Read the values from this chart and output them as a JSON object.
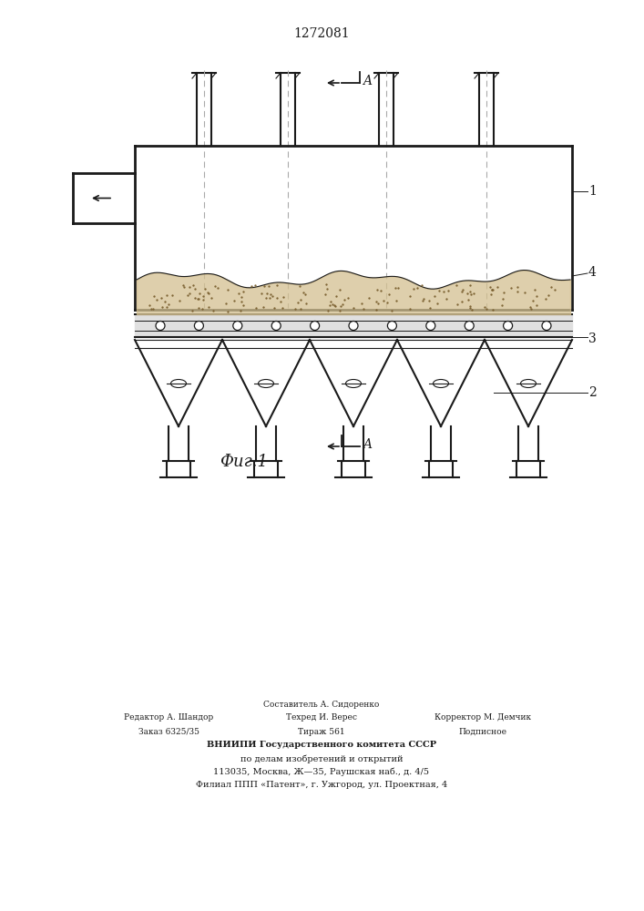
{
  "patent_number": "1272081",
  "fig_label": "Фиг.1",
  "section_label_A": "A",
  "label_1": "1",
  "label_2": "2",
  "label_3": "3",
  "label_4": "4",
  "bg_color": "#ffffff",
  "line_color": "#1a1a1a",
  "dash_color": "#aaaaaa",
  "fill_dust": "#d4c090",
  "footer_line1": "Составитель А. Сидоренко",
  "footer_line2_left": "Редактор А. Шандор",
  "footer_line2_mid": "Техред И. Верес",
  "footer_line2_right": "Корректор М. Демчик",
  "footer_line3_left": "Заказ 6325/35",
  "footer_line3_mid": "Тираж 561",
  "footer_line3_right": "Подписное",
  "footer_line4": "ВНИИПИ Государственного комитета СССР",
  "footer_line5": "по делам изобретений и открытий",
  "footer_line6": "113035, Москва, Ж—35, Раушская наб., д. 4/5",
  "footer_line7": "Филиал ППП «Патент», г. Ужгород, ул. Проектная, 4"
}
